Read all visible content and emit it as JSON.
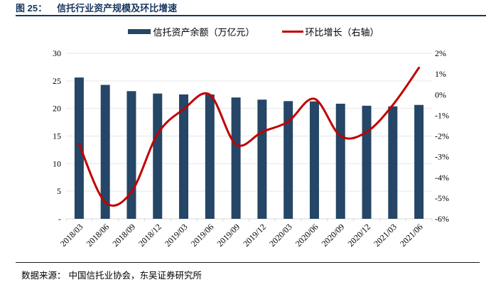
{
  "figure": {
    "label": "图 25：",
    "title": "信托行业资产规模及环比增速"
  },
  "legend": {
    "bar_label": "信托资产余额（万亿元）",
    "line_label": "环比增长（右轴）"
  },
  "footer": {
    "source_label": "数据来源：",
    "source_text": "中国信托业协会，东吴证券研究所"
  },
  "colors": {
    "title_navy": "#17375E",
    "bar_navy": "#254666",
    "line_red": "#C00000",
    "gridline": "#E6E6E6",
    "axis_line": "#D9D9D9",
    "tick_text": "#000000",
    "footer_rule": "#1a1a1a"
  },
  "chart_data": {
    "type": "bar",
    "subtype": "bar+line dual axis",
    "title": "信托行业资产规模及环比增速",
    "categories": [
      "2018/03",
      "2018/06",
      "2018/09",
      "2018/12",
      "2019/03",
      "2019/06",
      "2019/09",
      "2019/12",
      "2020/03",
      "2020/06",
      "2020/09",
      "2020/12",
      "2021/03",
      "2021/06"
    ],
    "series": [
      {
        "name": "信托资产余额（万亿元）",
        "type": "bar",
        "axis": "left",
        "values": [
          25.61,
          24.27,
          23.14,
          22.7,
          22.54,
          22.53,
          21.99,
          21.6,
          21.33,
          21.28,
          20.86,
          20.49,
          20.38,
          20.64
        ]
      },
      {
        "name": "环比增长（右轴）",
        "type": "line",
        "axis": "right",
        "unit": "%",
        "values": [
          -2.4,
          -5.2,
          -4.7,
          -1.9,
          -0.7,
          0.0,
          -2.4,
          -1.8,
          -1.3,
          -0.2,
          -2.0,
          -1.8,
          -0.5,
          1.3
        ]
      }
    ],
    "y_left": {
      "min": 0,
      "max": 30,
      "tick_labels": [
        "30",
        "25",
        "20",
        "15",
        "10",
        "5",
        "-"
      ]
    },
    "y_right": {
      "min": -6,
      "max": 2,
      "tick_labels": [
        "2%",
        "1%",
        "0%",
        "-1%",
        "-2%",
        "-3%",
        "-4%",
        "-5%",
        "-6%"
      ]
    },
    "grid": true,
    "legend_position": "top"
  }
}
